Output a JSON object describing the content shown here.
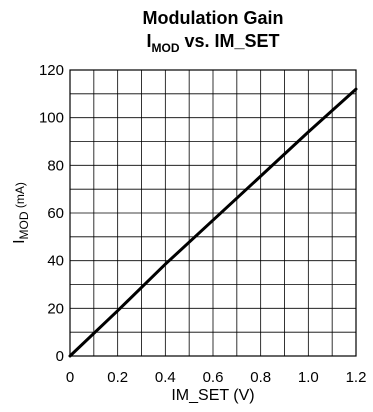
{
  "chart_data": {
    "type": "line",
    "title_line1": "Modulation Gain",
    "title_line2": {
      "main": "I",
      "sub": "MOD",
      "rest": " vs. IM_SET"
    },
    "xlabel": "IM_SET (V)",
    "ylabel": {
      "main": "I",
      "sub": "MOD",
      "rest": " (mA)"
    },
    "xlim": [
      0,
      1.2
    ],
    "ylim": [
      0,
      120
    ],
    "x_ticks": [
      "0",
      "0.2",
      "0.4",
      "0.6",
      "0.8",
      "1.0",
      "1.2"
    ],
    "x_tick_values": [
      0,
      0.2,
      0.4,
      0.6,
      0.8,
      1.0,
      1.2
    ],
    "y_ticks": [
      "0",
      "20",
      "40",
      "60",
      "80",
      "100",
      "120"
    ],
    "y_tick_values": [
      0,
      20,
      40,
      60,
      80,
      100,
      120
    ],
    "x_minor_step": 0.1,
    "y_minor_step": 10,
    "grid": true,
    "series": [
      {
        "x": [
          0,
          0.2,
          0.4,
          0.6,
          0.8,
          1.0,
          1.2
        ],
        "y": [
          0,
          19,
          38.5,
          57,
          75.5,
          94,
          112
        ]
      }
    ]
  }
}
